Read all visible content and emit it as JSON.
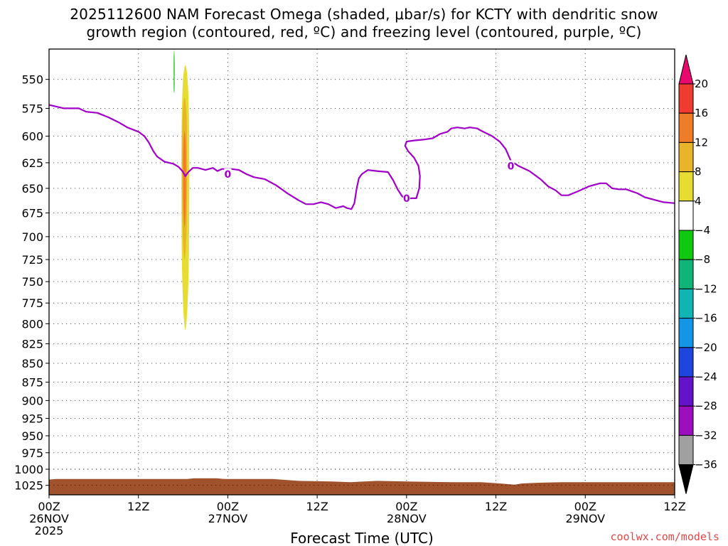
{
  "title": {
    "line1": "2025112600 NAM Forecast Omega (shaded, μbar/s) for KCTY with dendritic snow",
    "line2": "growth region (contoured, red, ºC) and freezing level (contoured, purple, ºC)"
  },
  "credit": "coolwx.com/models",
  "colors": {
    "freezing_line": "#a000c8",
    "ground": "#a0522d",
    "frame": "#000000"
  },
  "chart_data": {
    "type": "area",
    "xlabel": "Forecast Time (UTC)",
    "ylabel": "",
    "x_unit": "forecast hour",
    "xlim": [
      0,
      84
    ],
    "ylim": [
      1040,
      525
    ],
    "y_scale": "log",
    "grid": true,
    "x_ticks": [
      {
        "x": 0,
        "line1": "00Z",
        "line2": "26NOV",
        "line3": "2025"
      },
      {
        "x": 12,
        "line1": "12Z",
        "line2": "",
        "line3": ""
      },
      {
        "x": 24,
        "line1": "00Z",
        "line2": "27NOV",
        "line3": ""
      },
      {
        "x": 36,
        "line1": "12Z",
        "line2": "",
        "line3": ""
      },
      {
        "x": 48,
        "line1": "00Z",
        "line2": "28NOV",
        "line3": ""
      },
      {
        "x": 60,
        "line1": "12Z",
        "line2": "",
        "line3": ""
      },
      {
        "x": 72,
        "line1": "00Z",
        "line2": "29NOV",
        "line3": ""
      },
      {
        "x": 84,
        "line1": "12Z",
        "line2": "",
        "line3": ""
      }
    ],
    "y_ticks": [
      550,
      575,
      600,
      625,
      650,
      675,
      700,
      725,
      750,
      775,
      800,
      825,
      850,
      875,
      900,
      925,
      950,
      975,
      1000,
      1025
    ],
    "colorbar": {
      "labels": [
        "20",
        "16",
        "12",
        "8",
        "4",
        "−4",
        "−8",
        "−12",
        "−16",
        "−20",
        "−24",
        "−28",
        "−32",
        "−36"
      ],
      "colors": [
        "#e8086e",
        "#f03c30",
        "#ee7c28",
        "#e8b42a",
        "#e6dc32",
        "#ffffff",
        "#10c810",
        "#10b478",
        "#10b4b4",
        "#1496e6",
        "#1e46dc",
        "#6414c8",
        "#9b0fbe",
        "#a0a0a0",
        "#000000"
      ]
    },
    "freezing_level": {
      "name": "0",
      "label_positions": [
        [
          24.0,
          636
        ],
        [
          48.0,
          660
        ],
        [
          62.0,
          628
        ]
      ],
      "points": [
        [
          0.0,
          572
        ],
        [
          2.0,
          575
        ],
        [
          4.0,
          575
        ],
        [
          5.0,
          578
        ],
        [
          6.5,
          579
        ],
        [
          8.0,
          583
        ],
        [
          9.5,
          588
        ],
        [
          10.5,
          592
        ],
        [
          12.0,
          596
        ],
        [
          12.8,
          600
        ],
        [
          13.4,
          606
        ],
        [
          14.0,
          614
        ],
        [
          14.5,
          619
        ],
        [
          15.5,
          624
        ],
        [
          16.7,
          626
        ],
        [
          17.4,
          629
        ],
        [
          17.9,
          633
        ],
        [
          18.3,
          638
        ],
        [
          18.7,
          634
        ],
        [
          19.3,
          630
        ],
        [
          20.0,
          630
        ],
        [
          21.0,
          632
        ],
        [
          22.0,
          630
        ],
        [
          22.6,
          633
        ],
        [
          23.2,
          631
        ],
        [
          24.5,
          631
        ],
        [
          25.5,
          632
        ],
        [
          26.5,
          636
        ],
        [
          27.5,
          639
        ],
        [
          29.0,
          641
        ],
        [
          30.5,
          647
        ],
        [
          32.0,
          655
        ],
        [
          33.5,
          662
        ],
        [
          34.5,
          666
        ],
        [
          35.5,
          666
        ],
        [
          36.5,
          664
        ],
        [
          37.5,
          666
        ],
        [
          38.5,
          670
        ],
        [
          39.5,
          668
        ],
        [
          40.0,
          670
        ],
        [
          40.6,
          671
        ],
        [
          41.0,
          665
        ],
        [
          41.3,
          650
        ],
        [
          41.6,
          640
        ],
        [
          42.0,
          636
        ],
        [
          42.8,
          632
        ],
        [
          44.0,
          633
        ],
        [
          45.5,
          634
        ],
        [
          46.2,
          642
        ],
        [
          46.8,
          651
        ],
        [
          47.4,
          658
        ],
        [
          48.0,
          661
        ],
        [
          48.6,
          660
        ],
        [
          49.3,
          660
        ],
        [
          49.7,
          650
        ],
        [
          49.8,
          638
        ],
        [
          49.6,
          628
        ],
        [
          49.0,
          620
        ],
        [
          48.2,
          614
        ],
        [
          47.8,
          609
        ],
        [
          48.0,
          605
        ],
        [
          49.0,
          604
        ],
        [
          50.5,
          603
        ],
        [
          51.5,
          602
        ],
        [
          52.5,
          598
        ],
        [
          53.5,
          596
        ],
        [
          54.0,
          593
        ],
        [
          54.8,
          592
        ],
        [
          55.8,
          593
        ],
        [
          56.5,
          592
        ],
        [
          57.5,
          593
        ],
        [
          58.0,
          595
        ],
        [
          59.5,
          600
        ],
        [
          60.5,
          605
        ],
        [
          61.3,
          612
        ],
        [
          62.0,
          623
        ],
        [
          63.0,
          628
        ],
        [
          64.5,
          633
        ],
        [
          66.0,
          641
        ],
        [
          67.0,
          648
        ],
        [
          68.0,
          652
        ],
        [
          68.8,
          657
        ],
        [
          69.7,
          657
        ],
        [
          71.0,
          653
        ],
        [
          72.5,
          648
        ],
        [
          74.0,
          645
        ],
        [
          74.8,
          645
        ],
        [
          75.6,
          650
        ],
        [
          76.5,
          651
        ],
        [
          77.5,
          651
        ],
        [
          79.0,
          655
        ],
        [
          80.0,
          659
        ],
        [
          81.5,
          662
        ],
        [
          82.5,
          664
        ],
        [
          84.0,
          665
        ]
      ]
    },
    "omega_shaded": [
      {
        "value_range": [
          4,
          8
        ],
        "x_center": 18.3,
        "x_half_width": 0.55,
        "p_top": 538,
        "p_bottom": 808
      },
      {
        "value_range": [
          8,
          12
        ],
        "x_center": 18.2,
        "x_half_width": 0.35,
        "p_top": 565,
        "p_bottom": 725
      },
      {
        "value_range": [
          12,
          16
        ],
        "x_center": 18.2,
        "x_half_width": 0.2,
        "p_top": 595,
        "p_bottom": 690
      },
      {
        "value_range": [
          -8,
          -4
        ],
        "x_center": 16.8,
        "x_half_width": 0.07,
        "p_top": 525,
        "p_bottom": 562
      }
    ],
    "ground_surface": [
      [
        0.0,
        1016
      ],
      [
        1.0,
        1015
      ],
      [
        5.0,
        1015
      ],
      [
        10.0,
        1015
      ],
      [
        18.5,
        1015
      ],
      [
        19.5,
        1014
      ],
      [
        22.5,
        1014
      ],
      [
        23.5,
        1015
      ],
      [
        30.0,
        1015
      ],
      [
        33.5,
        1018
      ],
      [
        38.0,
        1019
      ],
      [
        40.5,
        1020
      ],
      [
        44.0,
        1018
      ],
      [
        48.0,
        1019
      ],
      [
        54.0,
        1020
      ],
      [
        58.0,
        1020
      ],
      [
        60.5,
        1022
      ],
      [
        62.5,
        1024
      ],
      [
        63.5,
        1022
      ],
      [
        65.5,
        1021
      ],
      [
        69.0,
        1020
      ],
      [
        72.0,
        1020
      ],
      [
        76.0,
        1020
      ],
      [
        80.0,
        1020
      ],
      [
        84.0,
        1020
      ]
    ]
  }
}
